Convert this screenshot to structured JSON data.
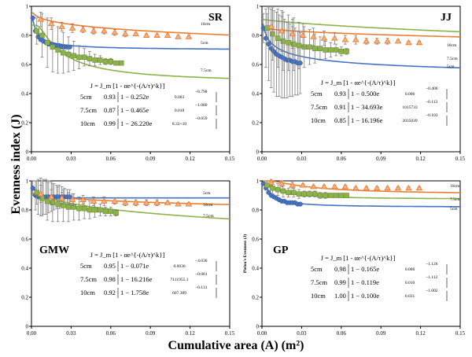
{
  "figure": {
    "ylabel": "Evenness index (J)",
    "xlabel": "Cumulative area (A) (m²)"
  },
  "colors": {
    "5cm": "#4472C4",
    "7.5cm": "#8DB348",
    "10cm": "#ED7D31",
    "axis": "#000000",
    "errorbar": "#7f7f7f"
  },
  "chart_data": [
    {
      "panel": "SR",
      "type": "scatter",
      "xlim": [
        0,
        0.15
      ],
      "ylim": [
        0,
        1
      ],
      "xticks": [
        "0.00",
        "0.03",
        "0.06",
        "0.09",
        "0.12",
        "0.15"
      ],
      "yticks": [
        "0",
        "0.2",
        "0.4",
        "0.6",
        "0.8",
        "1"
      ],
      "equation": "J = J_m [1 - αe^{-(A/τ)^k}]",
      "curve_labels": [
        "10cm",
        "5cm",
        "7.5cm"
      ],
      "series": [
        {
          "name": "5cm",
          "marker": "circle",
          "x": [
            0.001,
            0.003,
            0.005,
            0.007,
            0.009,
            0.011,
            0.013,
            0.015,
            0.017,
            0.019,
            0.021,
            0.023,
            0.025,
            0.027,
            0.029
          ],
          "y": [
            0.92,
            0.83,
            0.79,
            0.77,
            0.76,
            0.75,
            0.74,
            0.74,
            0.73,
            0.73,
            0.73,
            0.72,
            0.72,
            0.72,
            0.72
          ],
          "fit": {
            "Jm": 0.93,
            "alpha": 0.252,
            "tau": 0.003,
            "k": -0.798,
            "text_Jm": "0.93",
            "text_alpha": "0.252",
            "text_tau": "0.003",
            "text_k": "−0.798"
          }
        },
        {
          "name": "7.5cm",
          "marker": "square",
          "x": [
            0.004,
            0.008,
            0.012,
            0.016,
            0.02,
            0.024,
            0.028,
            0.032,
            0.036,
            0.04,
            0.044,
            0.048,
            0.052,
            0.056,
            0.06,
            0.064,
            0.068
          ],
          "y": [
            0.83,
            0.8,
            0.75,
            0.72,
            0.7,
            0.68,
            0.67,
            0.66,
            0.65,
            0.65,
            0.64,
            0.63,
            0.63,
            0.62,
            0.62,
            0.61,
            0.61
          ],
          "err": [
            0.09,
            0.15,
            0.17,
            0.17,
            0.16,
            0.14,
            0.12,
            0.1,
            0.08,
            0.06,
            0.05,
            0.04,
            0.03,
            0.02,
            0.02,
            0.01,
            0.01
          ],
          "fit": {
            "Jm": 0.87,
            "alpha": 0.465,
            "tau": 0.018,
            "k": -1.08,
            "text_Jm": "0.87",
            "text_alpha": "0.465",
            "text_tau": "0.018",
            "text_k": "−1.080"
          }
        },
        {
          "name": "10cm",
          "marker": "triangle",
          "x": [
            0.007,
            0.015,
            0.023,
            0.031,
            0.039,
            0.047,
            0.055,
            0.063,
            0.071,
            0.079,
            0.087,
            0.095,
            0.103,
            0.111,
            0.119
          ],
          "y": [
            0.91,
            0.88,
            0.86,
            0.85,
            0.84,
            0.83,
            0.83,
            0.82,
            0.81,
            0.81,
            0.8,
            0.8,
            0.8,
            0.79,
            0.79
          ],
          "err": [
            0.05,
            0.04,
            0.03,
            0.03,
            0.02,
            0.02,
            0.02,
            0.02,
            0.02,
            0.01,
            0.01,
            0.01,
            0.01,
            0.01,
            0.01
          ],
          "fit": {
            "Jm": 0.99,
            "alpha": 26.22,
            "tau": 83200000000.0,
            "k": -0.059,
            "text_Jm": "0.99",
            "text_alpha": "26.220",
            "text_tau": "8.32+10",
            "text_k": "−0.059"
          }
        }
      ]
    },
    {
      "panel": "JJ",
      "type": "scatter",
      "xlim": [
        0,
        0.15
      ],
      "ylim": [
        0,
        1
      ],
      "xticks": [
        "0.00",
        "0.03",
        "0.06",
        "0.09",
        "0.12",
        "0.15"
      ],
      "yticks": [
        "0",
        "0.2",
        "0.4",
        "0.6",
        "0.8",
        "1"
      ],
      "equation": "J = J_m [1 - αe^{-(A/τ)^k}]",
      "curve_labels": [
        "10cm",
        "7.5cm",
        "5cm"
      ],
      "series": [
        {
          "name": "5cm",
          "marker": "circle",
          "x": [
            0.001,
            0.003,
            0.005,
            0.007,
            0.009,
            0.011,
            0.013,
            0.015,
            0.017,
            0.019,
            0.021,
            0.023,
            0.025,
            0.027,
            0.029
          ],
          "y": [
            0.85,
            0.78,
            0.74,
            0.71,
            0.69,
            0.67,
            0.66,
            0.65,
            0.64,
            0.63,
            0.63,
            0.62,
            0.62,
            0.61,
            0.61
          ],
          "err": [
            0.1,
            0.2,
            0.25,
            0.27,
            0.28,
            0.29,
            0.28,
            0.28,
            0.27,
            0.26,
            0.25,
            0.24,
            0.23,
            0.22,
            0.21
          ],
          "fit": {
            "Jm": 0.93,
            "alpha": 0.5,
            "tau": 0.006,
            "k": -0.4,
            "text_Jm": "0.93",
            "text_alpha": "0.500",
            "text_tau": "0.006",
            "text_k": "−0.400"
          }
        },
        {
          "name": "7.5cm",
          "marker": "square",
          "x": [
            0.004,
            0.008,
            0.012,
            0.016,
            0.02,
            0.024,
            0.028,
            0.032,
            0.036,
            0.04,
            0.044,
            0.048,
            0.052,
            0.056,
            0.06,
            0.064
          ],
          "y": [
            0.85,
            0.81,
            0.78,
            0.76,
            0.75,
            0.74,
            0.73,
            0.72,
            0.72,
            0.71,
            0.71,
            0.7,
            0.7,
            0.7,
            0.69,
            0.69
          ],
          "err": [
            0.1,
            0.18,
            0.2,
            0.2,
            0.19,
            0.18,
            0.16,
            0.14,
            0.12,
            0.1,
            0.08,
            0.06,
            0.05,
            0.04,
            0.03,
            0.02
          ],
          "fit": {
            "Jm": 0.91,
            "alpha": 34.693,
            "tau": 1015733,
            "k": -0.113,
            "text_Jm": "0.91",
            "text_alpha": "34.693",
            "text_tau": "1015733",
            "text_k": "−0.113"
          }
        },
        {
          "name": "10cm",
          "marker": "triangle",
          "x": [
            0.007,
            0.015,
            0.023,
            0.031,
            0.039,
            0.047,
            0.055,
            0.063,
            0.071,
            0.079,
            0.087,
            0.095,
            0.103,
            0.111,
            0.119
          ],
          "y": [
            0.86,
            0.83,
            0.81,
            0.8,
            0.79,
            0.78,
            0.78,
            0.77,
            0.77,
            0.76,
            0.76,
            0.76,
            0.76,
            0.75,
            0.75
          ],
          "err": [
            0.12,
            0.14,
            0.1,
            0.08,
            0.06,
            0.05,
            0.04,
            0.03,
            0.03,
            0.02,
            0.02,
            0.02,
            0.01,
            0.01,
            0.01
          ],
          "fit": {
            "Jm": 0.85,
            "alpha": 16.196,
            "tau": 2035039,
            "k": -0.103,
            "text_Jm": "0.85",
            "text_alpha": "16.196",
            "text_tau": "2035039",
            "text_k": "−0.103"
          }
        }
      ]
    },
    {
      "panel": "GMW",
      "type": "scatter",
      "xlim": [
        0,
        0.15
      ],
      "ylim": [
        0,
        1
      ],
      "xticks": [
        "0.00",
        "0.03",
        "0.06",
        "0.09",
        "0.12",
        "0.15"
      ],
      "yticks": [
        "0",
        "0.2",
        "0.4",
        "0.6",
        "0.8",
        "1"
      ],
      "equation": "J = J_m [1 - αe^{-(A/τ)^k}]",
      "curve_labels": [
        "5cm",
        "10cm",
        "7.5cm"
      ],
      "series": [
        {
          "name": "5cm",
          "marker": "circle",
          "x": [
            0.001,
            0.003,
            0.005,
            0.007,
            0.009,
            0.011,
            0.013,
            0.015,
            0.017,
            0.019,
            0.021,
            0.023,
            0.025,
            0.027,
            0.029
          ],
          "y": [
            0.95,
            0.9,
            0.89,
            0.89,
            0.89,
            0.89,
            0.89,
            0.89,
            0.89,
            0.89,
            0.89,
            0.89,
            0.89,
            0.89,
            0.89
          ],
          "err": [
            0.05,
            0.1,
            0.12,
            0.13,
            0.12,
            0.12,
            0.11,
            0.1,
            0.09,
            0.08,
            0.08,
            0.07,
            0.06,
            0.05,
            0.05
          ],
          "fit": {
            "Jm": 0.95,
            "alpha": 0.071,
            "tau": 0.0036,
            "k": -4.036,
            "text_Jm": "0.95",
            "text_alpha": "0.071",
            "text_tau": "0.0036",
            "text_k": "−4.036"
          }
        },
        {
          "name": "7.5cm",
          "marker": "square",
          "x": [
            0.004,
            0.008,
            0.012,
            0.016,
            0.02,
            0.024,
            0.028,
            0.032,
            0.036,
            0.04,
            0.044,
            0.048,
            0.052,
            0.056,
            0.06,
            0.064
          ],
          "y": [
            0.92,
            0.88,
            0.86,
            0.85,
            0.84,
            0.83,
            0.82,
            0.82,
            0.81,
            0.81,
            0.8,
            0.8,
            0.8,
            0.79,
            0.79,
            0.78
          ],
          "err": [
            0.08,
            0.12,
            0.13,
            0.13,
            0.12,
            0.11,
            0.1,
            0.09,
            0.08,
            0.07,
            0.06,
            0.05,
            0.04,
            0.03,
            0.03,
            0.02
          ],
          "fit": {
            "Jm": 0.98,
            "alpha": 16.216,
            "tau": 7111955.1,
            "k": -0.081,
            "text_Jm": "0.98",
            "text_alpha": "16.216",
            "text_tau": "7111955.1",
            "text_k": "−0.081"
          }
        },
        {
          "name": "10cm",
          "marker": "triangle",
          "x": [
            0.007,
            0.015,
            0.023,
            0.031,
            0.039,
            0.047,
            0.055,
            0.063,
            0.071,
            0.079,
            0.087,
            0.095,
            0.103,
            0.111,
            0.119
          ],
          "y": [
            0.91,
            0.89,
            0.88,
            0.87,
            0.87,
            0.86,
            0.86,
            0.86,
            0.85,
            0.85,
            0.85,
            0.85,
            0.85,
            0.84,
            0.84
          ],
          "err": [
            0.06,
            0.05,
            0.04,
            0.04,
            0.03,
            0.03,
            0.03,
            0.02,
            0.02,
            0.02,
            0.02,
            0.02,
            0.01,
            0.01,
            0.01
          ],
          "fit": {
            "Jm": 0.92,
            "alpha": 1.758,
            "tau": 607.309,
            "k": -0.131,
            "text_Jm": "0.92",
            "text_alpha": "1.758",
            "text_tau": "607.309",
            "text_k": "−0.131"
          }
        }
      ]
    },
    {
      "panel": "GP",
      "type": "scatter",
      "xlim": [
        0,
        0.15
      ],
      "ylim": [
        0,
        1
      ],
      "ylabel": "Pielou's Evenness (J)",
      "xticks": [
        "0.00",
        "0.03",
        "0.06",
        "0.09",
        "0.12",
        "0.15"
      ],
      "yticks": [
        "0",
        "0.2",
        "0.4",
        "0.6",
        "0.8",
        "1"
      ],
      "equation": "J = J_m [1 - αe^{-(A/τ)^k}]",
      "curve_labels": [
        "10cm",
        "7.5cm",
        "5cm"
      ],
      "series": [
        {
          "name": "5cm",
          "marker": "circle",
          "x": [
            0.001,
            0.003,
            0.005,
            0.007,
            0.009,
            0.011,
            0.013,
            0.015,
            0.017,
            0.019,
            0.021,
            0.023,
            0.025,
            0.027,
            0.029
          ],
          "y": [
            0.98,
            0.95,
            0.92,
            0.9,
            0.89,
            0.88,
            0.87,
            0.86,
            0.86,
            0.85,
            0.85,
            0.85,
            0.85,
            0.84,
            0.84
          ],
          "fit": {
            "Jm": 0.98,
            "alpha": 0.165,
            "tau": 0.006,
            "k": -1.126,
            "text_Jm": "0.98",
            "text_alpha": "0.165",
            "text_tau": "0.006",
            "text_k": "−1.126"
          }
        },
        {
          "name": "7.5cm",
          "marker": "square",
          "x": [
            0.004,
            0.008,
            0.012,
            0.016,
            0.02,
            0.024,
            0.028,
            0.032,
            0.036,
            0.04,
            0.044,
            0.048,
            0.052,
            0.056,
            0.06,
            0.064
          ],
          "y": [
            0.97,
            0.95,
            0.94,
            0.93,
            0.92,
            0.92,
            0.91,
            0.91,
            0.91,
            0.91,
            0.9,
            0.9,
            0.9,
            0.9,
            0.9,
            0.9
          ],
          "err": [
            0.03,
            0.04,
            0.04,
            0.04,
            0.03,
            0.03,
            0.03,
            0.02,
            0.02,
            0.02,
            0.02,
            0.02,
            0.01,
            0.01,
            0.01,
            0.01
          ],
          "fit": {
            "Jm": 0.99,
            "alpha": 0.119,
            "tau": 0.01,
            "k": -1.112,
            "text_Jm": "0.99",
            "text_alpha": "0.119",
            "text_tau": "0.010",
            "text_k": "−1.112"
          }
        },
        {
          "name": "10cm",
          "marker": "triangle",
          "x": [
            0.007,
            0.015,
            0.023,
            0.031,
            0.039,
            0.047,
            0.055,
            0.063,
            0.071,
            0.079,
            0.087,
            0.095,
            0.103,
            0.111,
            0.119
          ],
          "y": [
            0.99,
            0.98,
            0.97,
            0.97,
            0.96,
            0.96,
            0.96,
            0.96,
            0.95,
            0.95,
            0.95,
            0.95,
            0.95,
            0.95,
            0.95
          ],
          "err": [
            0.02,
            0.02,
            0.02,
            0.01,
            0.01,
            0.01,
            0.01,
            0.01,
            0.01,
            0.01,
            0.01,
            0.01,
            0.01,
            0.01,
            0.01
          ],
          "fit": {
            "Jm": 1.0,
            "alpha": 0.1,
            "tau": 0.031,
            "k": -1.002,
            "text_Jm": "1.00",
            "text_alpha": "0.100",
            "text_tau": "0.031",
            "text_k": "−1.002"
          }
        }
      ]
    }
  ]
}
